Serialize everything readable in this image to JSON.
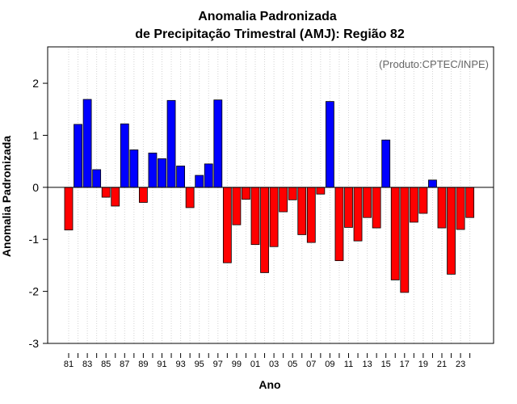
{
  "chart_data": {
    "type": "bar",
    "title": "Anomalia Padronizada",
    "subtitle": "de Precipitação Trimestral (AMJ): Região 82",
    "credit": "(Produto:CPTEC/INPE)",
    "xlabel": "Ano",
    "ylabel": "Anomalia Padronizada",
    "ylim": [
      -3,
      2.7
    ],
    "yticks": [
      -3,
      -2,
      -1,
      0,
      1,
      2
    ],
    "xtick_labels": [
      "81",
      "83",
      "85",
      "87",
      "89",
      "91",
      "93",
      "95",
      "97",
      "99",
      "01",
      "03",
      "05",
      "07",
      "09",
      "11",
      "13",
      "15",
      "17",
      "19",
      "21",
      "23"
    ],
    "categories": [
      "1981",
      "1982",
      "1983",
      "1984",
      "1985",
      "1986",
      "1987",
      "1988",
      "1989",
      "1990",
      "1991",
      "1992",
      "1993",
      "1994",
      "1995",
      "1996",
      "1997",
      "1998",
      "1999",
      "2000",
      "2001",
      "2002",
      "2003",
      "2004",
      "2005",
      "2006",
      "2007",
      "2008",
      "2009",
      "2010",
      "2011",
      "2012",
      "2013",
      "2014",
      "2015",
      "2016",
      "2017",
      "2018",
      "2019",
      "2020",
      "2021",
      "2022",
      "2023",
      "2024"
    ],
    "values": [
      -0.82,
      1.21,
      1.69,
      0.34,
      -0.19,
      -0.36,
      1.22,
      0.72,
      -0.29,
      0.66,
      0.55,
      1.67,
      0.41,
      -0.39,
      0.23,
      0.45,
      1.68,
      -1.45,
      -0.72,
      -0.23,
      -1.1,
      -1.64,
      -1.14,
      -0.47,
      -0.24,
      -0.91,
      -1.06,
      -0.13,
      1.65,
      -1.41,
      -0.77,
      -1.03,
      -0.58,
      -0.78,
      0.91,
      -1.78,
      -2.02,
      -0.67,
      -0.5,
      0.14,
      -0.78,
      -1.67,
      -0.81,
      -0.58
    ],
    "colors": {
      "positive": "#0000ff",
      "negative": "#ff0000",
      "grid": "#d3d3d3"
    },
    "grid": true
  }
}
